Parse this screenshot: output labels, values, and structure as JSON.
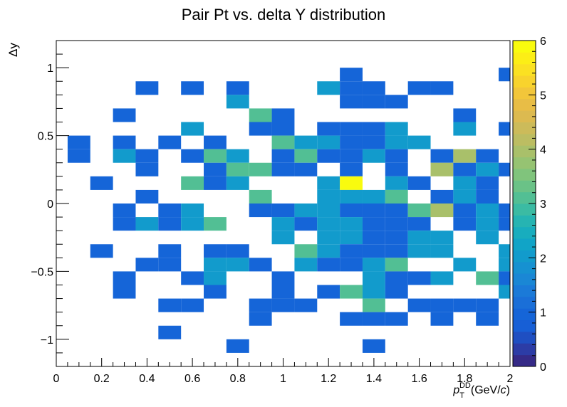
{
  "chart_data": {
    "type": "heatmap",
    "title": "Pair Pt vs. delta Y distribution",
    "xlabel": "p_T^DD (GeV/c)",
    "xlabel_parts": {
      "p": "p",
      "sub": "T",
      "sup": "DD",
      "rest": "(GeV/",
      "c": "c",
      "close": ")"
    },
    "ylabel": "Δy",
    "xlim": [
      0,
      2
    ],
    "ylim": [
      -1.2,
      1.2
    ],
    "x_bin_width": 0.1,
    "y_bin_width": 0.1,
    "x_ticks": [
      0,
      0.2,
      0.4,
      0.6,
      0.8,
      1,
      1.2,
      1.4,
      1.6,
      1.8,
      2
    ],
    "x_tick_labels": [
      "0",
      "0.2",
      "0.4",
      "0.6",
      "0.8",
      "1",
      "1.2",
      "1.4",
      "1.6",
      "1.8",
      "2"
    ],
    "y_ticks": [
      -1,
      -0.5,
      0,
      0.5,
      1
    ],
    "y_tick_labels": [
      "−1",
      "−0.5",
      "0",
      "0.5",
      "1"
    ],
    "z_range": [
      0,
      6
    ],
    "z_ticks": [
      0,
      1,
      2,
      3,
      4,
      5,
      6
    ],
    "z_tick_labels": [
      "0",
      "1",
      "2",
      "3",
      "4",
      "5",
      "6"
    ],
    "palette": [
      "#352a87",
      "#2c3ca6",
      "#1f4fc2",
      "#175fd6",
      "#1565d8",
      "#1a6fd8",
      "#1b7ad8",
      "#1a87d5",
      "#1691d1",
      "#129bcc",
      "#11a4c7",
      "#18adbe",
      "#26b4b2",
      "#3bbba3",
      "#52bf94",
      "#6ac287",
      "#80c47c",
      "#96c372",
      "#a9c06a",
      "#bcbd62",
      "#ccbb5a",
      "#dcba50",
      "#e8bd46",
      "#f2c63a",
      "#f8d32d",
      "#fbe122",
      "#fcee16",
      "#f9fb0e"
    ],
    "cells": [
      [
        0.1,
        0.35,
        1
      ],
      [
        0.1,
        0.45,
        1
      ],
      [
        0.2,
        0.15,
        1
      ],
      [
        0.2,
        -0.35,
        1
      ],
      [
        0.3,
        0.65,
        1
      ],
      [
        0.3,
        0.45,
        1
      ],
      [
        0.3,
        0.35,
        2
      ],
      [
        0.3,
        -0.05,
        1
      ],
      [
        0.3,
        -0.15,
        1
      ],
      [
        0.3,
        -0.65,
        1
      ],
      [
        0.3,
        -0.55,
        1
      ],
      [
        0.4,
        0.85,
        1
      ],
      [
        0.4,
        0.35,
        1
      ],
      [
        0.4,
        0.25,
        1
      ],
      [
        0.4,
        0.05,
        1
      ],
      [
        0.4,
        -0.15,
        2
      ],
      [
        0.4,
        -0.45,
        1
      ],
      [
        0.5,
        0.45,
        1
      ],
      [
        0.5,
        -0.05,
        1
      ],
      [
        0.5,
        -0.15,
        1
      ],
      [
        0.5,
        -0.35,
        1
      ],
      [
        0.5,
        -0.45,
        1
      ],
      [
        0.5,
        -0.95,
        1
      ],
      [
        0.5,
        -0.75,
        1
      ],
      [
        0.6,
        0.85,
        1
      ],
      [
        0.6,
        0.55,
        2
      ],
      [
        0.6,
        0.35,
        1
      ],
      [
        0.6,
        0.15,
        3
      ],
      [
        0.6,
        -0.05,
        2
      ],
      [
        0.6,
        -0.15,
        2
      ],
      [
        0.6,
        -0.55,
        1
      ],
      [
        0.6,
        -0.75,
        1
      ],
      [
        0.7,
        0.45,
        1
      ],
      [
        0.7,
        0.35,
        3
      ],
      [
        0.7,
        0.25,
        1
      ],
      [
        0.7,
        0.15,
        1
      ],
      [
        0.7,
        -0.15,
        3
      ],
      [
        0.7,
        -0.35,
        1
      ],
      [
        0.7,
        -0.45,
        2
      ],
      [
        0.7,
        -0.55,
        2
      ],
      [
        0.7,
        -0.65,
        1
      ],
      [
        0.8,
        0.85,
        1
      ],
      [
        0.8,
        0.75,
        2
      ],
      [
        0.8,
        0.35,
        2
      ],
      [
        0.8,
        0.25,
        3
      ],
      [
        0.8,
        0.15,
        2
      ],
      [
        0.8,
        -0.35,
        1
      ],
      [
        0.8,
        -0.45,
        2
      ],
      [
        0.8,
        -1.05,
        1
      ],
      [
        0.9,
        0.65,
        3
      ],
      [
        0.9,
        0.55,
        1
      ],
      [
        0.9,
        0.25,
        3
      ],
      [
        0.9,
        0.05,
        3
      ],
      [
        0.9,
        -0.05,
        1
      ],
      [
        0.9,
        -0.45,
        1
      ],
      [
        0.9,
        -0.85,
        1
      ],
      [
        0.9,
        -0.75,
        1
      ],
      [
        1.0,
        0.65,
        1
      ],
      [
        1.0,
        0.55,
        1
      ],
      [
        1.0,
        0.45,
        3
      ],
      [
        1.0,
        0.35,
        1
      ],
      [
        1.0,
        0.25,
        1
      ],
      [
        1.0,
        -0.05,
        1
      ],
      [
        1.0,
        -0.15,
        2
      ],
      [
        1.0,
        -0.25,
        2
      ],
      [
        1.0,
        -0.55,
        1
      ],
      [
        1.0,
        -0.65,
        1
      ],
      [
        1.0,
        -0.75,
        1
      ],
      [
        1.1,
        0.45,
        2
      ],
      [
        1.1,
        0.35,
        3
      ],
      [
        1.1,
        0.25,
        1
      ],
      [
        1.1,
        -0.05,
        2
      ],
      [
        1.1,
        -0.15,
        1
      ],
      [
        1.1,
        -0.35,
        3
      ],
      [
        1.1,
        -0.45,
        2
      ],
      [
        1.1,
        -0.75,
        1
      ],
      [
        1.2,
        0.85,
        2
      ],
      [
        1.2,
        0.55,
        1
      ],
      [
        1.2,
        0.45,
        2
      ],
      [
        1.2,
        0.35,
        1
      ],
      [
        1.2,
        0.15,
        2
      ],
      [
        1.2,
        0.05,
        2
      ],
      [
        1.2,
        -0.05,
        2
      ],
      [
        1.2,
        -0.15,
        2
      ],
      [
        1.2,
        -0.25,
        2
      ],
      [
        1.2,
        -0.35,
        2
      ],
      [
        1.2,
        -0.45,
        1
      ],
      [
        1.2,
        -0.65,
        1
      ],
      [
        1.3,
        0.95,
        1
      ],
      [
        1.3,
        0.85,
        1
      ],
      [
        1.3,
        0.75,
        1
      ],
      [
        1.3,
        0.55,
        1
      ],
      [
        1.3,
        0.45,
        1
      ],
      [
        1.3,
        0.35,
        1
      ],
      [
        1.3,
        0.25,
        1
      ],
      [
        1.3,
        0.15,
        6
      ],
      [
        1.3,
        0.05,
        2
      ],
      [
        1.3,
        -0.05,
        1
      ],
      [
        1.3,
        -0.15,
        2
      ],
      [
        1.3,
        -0.25,
        2
      ],
      [
        1.3,
        -0.35,
        1
      ],
      [
        1.3,
        -0.45,
        1
      ],
      [
        1.3,
        -0.65,
        3
      ],
      [
        1.3,
        -0.85,
        1
      ],
      [
        1.4,
        0.85,
        1
      ],
      [
        1.4,
        0.75,
        1
      ],
      [
        1.4,
        0.55,
        1
      ],
      [
        1.4,
        0.45,
        1
      ],
      [
        1.4,
        0.35,
        2
      ],
      [
        1.4,
        0.05,
        2
      ],
      [
        1.4,
        -0.05,
        1
      ],
      [
        1.4,
        -0.15,
        1
      ],
      [
        1.4,
        -0.25,
        1
      ],
      [
        1.4,
        -0.35,
        1
      ],
      [
        1.4,
        -0.45,
        2
      ],
      [
        1.4,
        -0.55,
        2
      ],
      [
        1.4,
        -0.65,
        2
      ],
      [
        1.4,
        -0.75,
        3
      ],
      [
        1.4,
        -0.85,
        1
      ],
      [
        1.4,
        -1.05,
        1
      ],
      [
        1.5,
        0.75,
        1
      ],
      [
        1.5,
        0.55,
        2
      ],
      [
        1.5,
        0.45,
        2
      ],
      [
        1.5,
        0.35,
        1
      ],
      [
        1.5,
        0.25,
        1
      ],
      [
        1.5,
        0.15,
        2
      ],
      [
        1.5,
        0.05,
        3
      ],
      [
        1.5,
        -0.05,
        1
      ],
      [
        1.5,
        -0.15,
        1
      ],
      [
        1.5,
        -0.25,
        1
      ],
      [
        1.5,
        -0.35,
        1
      ],
      [
        1.5,
        -0.45,
        3
      ],
      [
        1.5,
        -0.55,
        1
      ],
      [
        1.5,
        -0.65,
        1
      ],
      [
        1.5,
        -0.85,
        1
      ],
      [
        1.6,
        0.85,
        1
      ],
      [
        1.6,
        0.45,
        2
      ],
      [
        1.6,
        0.15,
        1
      ],
      [
        1.6,
        -0.05,
        3
      ],
      [
        1.6,
        -0.15,
        1
      ],
      [
        1.6,
        -0.25,
        2
      ],
      [
        1.6,
        -0.35,
        2
      ],
      [
        1.6,
        -0.55,
        1
      ],
      [
        1.6,
        -0.75,
        1
      ],
      [
        1.7,
        0.85,
        1
      ],
      [
        1.7,
        0.35,
        1
      ],
      [
        1.7,
        0.25,
        4
      ],
      [
        1.7,
        0.05,
        1
      ],
      [
        1.7,
        -0.05,
        4
      ],
      [
        1.7,
        -0.25,
        2
      ],
      [
        1.7,
        -0.35,
        2
      ],
      [
        1.7,
        -0.55,
        2
      ],
      [
        1.7,
        -0.75,
        1
      ],
      [
        1.7,
        -0.85,
        1
      ],
      [
        1.8,
        0.65,
        1
      ],
      [
        1.8,
        0.55,
        2
      ],
      [
        1.8,
        0.35,
        4
      ],
      [
        1.8,
        0.25,
        1
      ],
      [
        1.8,
        0.15,
        2
      ],
      [
        1.8,
        0.05,
        2
      ],
      [
        1.8,
        -0.05,
        1
      ],
      [
        1.8,
        -0.15,
        1
      ],
      [
        1.8,
        -0.45,
        2
      ],
      [
        1.8,
        -0.75,
        1
      ],
      [
        1.9,
        0.35,
        1
      ],
      [
        1.9,
        0.25,
        2
      ],
      [
        1.9,
        0.15,
        1
      ],
      [
        1.9,
        0.05,
        1
      ],
      [
        1.9,
        -0.05,
        2
      ],
      [
        1.9,
        -0.15,
        2
      ],
      [
        1.9,
        -0.25,
        2
      ],
      [
        1.9,
        -0.55,
        3
      ],
      [
        1.9,
        -0.75,
        1
      ],
      [
        1.9,
        -0.85,
        1
      ],
      [
        2.0,
        0.95,
        1
      ],
      [
        2.0,
        0.55,
        1
      ],
      [
        2.0,
        0.25,
        1
      ],
      [
        2.0,
        -0.05,
        1
      ],
      [
        2.0,
        -0.15,
        1
      ],
      [
        2.0,
        -0.35,
        2
      ],
      [
        2.0,
        -0.45,
        2
      ],
      [
        2.0,
        -0.55,
        1
      ],
      [
        2.0,
        -0.65,
        2
      ]
    ]
  }
}
